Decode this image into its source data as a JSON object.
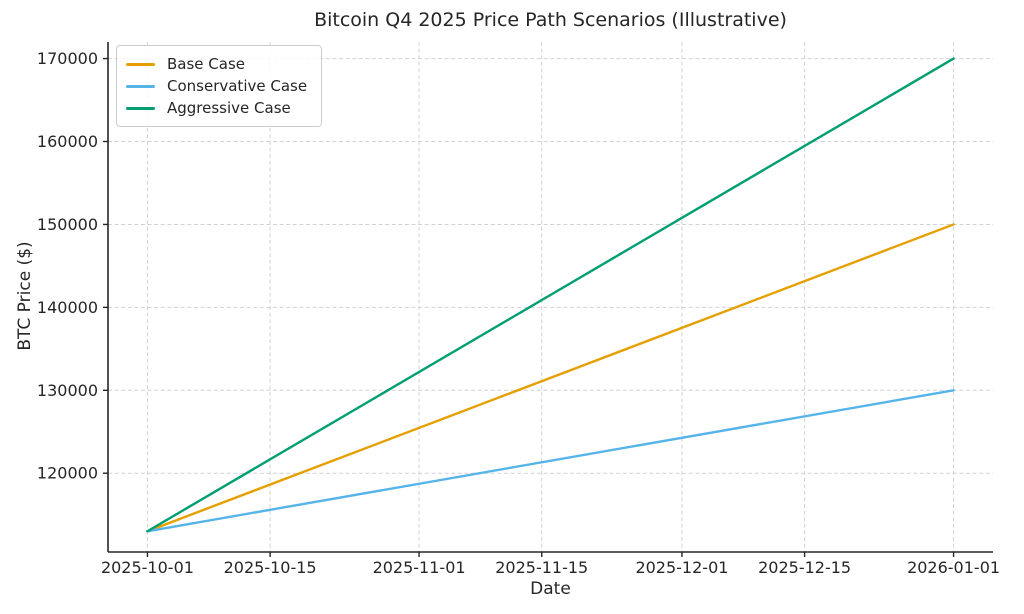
{
  "figure": {
    "title": "Bitcoin Q4 2025 Price Path Scenarios (Illustrative)",
    "xlabel": "Date",
    "ylabel": "BTC Price ($)"
  },
  "legend": {
    "position": "upper left",
    "items": [
      {
        "label": "Base Case",
        "color": "#E69F00"
      },
      {
        "label": "Conservative Case",
        "color": "#56B4E9"
      },
      {
        "label": "Aggressive Case",
        "color": "#009E73"
      }
    ]
  },
  "chart_data": {
    "type": "line",
    "title": "Bitcoin Q4 2025 Price Path Scenarios (Illustrative)",
    "xlabel": "Date",
    "ylabel": "BTC Price ($)",
    "x_tick_labels": [
      "2025-10-01",
      "2025-10-15",
      "2025-11-01",
      "2025-11-15",
      "2025-12-01",
      "2025-12-15",
      "2026-01-01"
    ],
    "x_tick_days": [
      0,
      14,
      31,
      45,
      61,
      75,
      92
    ],
    "y_ticks": [
      120000,
      130000,
      140000,
      150000,
      160000,
      170000
    ],
    "y_tick_labels": [
      "120000",
      "130000",
      "140000",
      "150000",
      "160000",
      "170000"
    ],
    "xlim_days": [
      -4.5,
      96.5
    ],
    "ylim": [
      110500,
      172000
    ],
    "grid": true,
    "grid_style": "dashed",
    "legend_position": "upper left",
    "series": [
      {
        "name": "Base Case",
        "color": "#E69F00",
        "start_date": "2025-10-01",
        "end_date": "2026-01-01",
        "x_days": [
          0,
          92
        ],
        "values": [
          113000,
          150000
        ],
        "values_at_ticks": [
          113000,
          118630,
          125467,
          131098,
          137533,
          143163,
          150000
        ]
      },
      {
        "name": "Conservative Case",
        "color": "#56B4E9",
        "start_date": "2025-10-01",
        "end_date": "2026-01-01",
        "x_days": [
          0,
          92
        ],
        "values": [
          113000,
          130000
        ],
        "values_at_ticks": [
          113000,
          115587,
          118728,
          121315,
          124272,
          126859,
          130000
        ]
      },
      {
        "name": "Aggressive Case",
        "color": "#009E73",
        "start_date": "2025-10-01",
        "end_date": "2026-01-01",
        "x_days": [
          0,
          92
        ],
        "values": [
          113000,
          170000
        ],
        "values_at_ticks": [
          113000,
          121674,
          132207,
          140880,
          150793,
          159467,
          170000
        ]
      }
    ]
  }
}
